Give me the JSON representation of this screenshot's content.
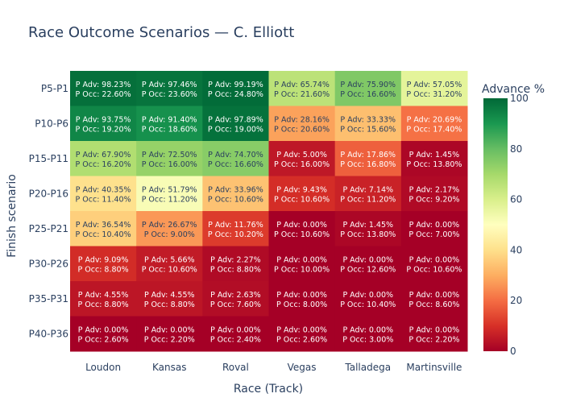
{
  "chart_data": {
    "type": "heatmap",
    "title": "Race Outcome Scenarios — C. Elliott",
    "xlabel": "Race (Track)",
    "ylabel": "Finish scenario",
    "x": [
      "Loudon",
      "Kansas",
      "Roval",
      "Vegas",
      "Talladega",
      "Martinsville"
    ],
    "y": [
      "P5-P1",
      "P10-P6",
      "P15-P11",
      "P20-P16",
      "P25-P21",
      "P30-P26",
      "P35-P31",
      "P40-P36"
    ],
    "cell_label_prefix_adv": "P Adv: ",
    "cell_label_prefix_occ": "P Occ: ",
    "advance_pct": [
      [
        98.23,
        97.46,
        99.19,
        65.74,
        75.9,
        57.05
      ],
      [
        93.75,
        91.4,
        97.89,
        28.16,
        33.33,
        20.69
      ],
      [
        67.9,
        72.5,
        74.7,
        5.0,
        17.86,
        1.45
      ],
      [
        40.35,
        51.79,
        33.96,
        9.43,
        7.14,
        2.17
      ],
      [
        36.54,
        26.67,
        11.76,
        0.0,
        1.45,
        0.0
      ],
      [
        9.09,
        5.66,
        2.27,
        0.0,
        0.0,
        0.0
      ],
      [
        4.55,
        4.55,
        2.63,
        0.0,
        0.0,
        0.0
      ],
      [
        0.0,
        0.0,
        0.0,
        0.0,
        0.0,
        0.0
      ]
    ],
    "occurrence_pct": [
      [
        22.6,
        23.6,
        24.8,
        21.6,
        16.6,
        31.2
      ],
      [
        19.2,
        18.6,
        19.0,
        20.6,
        15.6,
        17.4
      ],
      [
        16.2,
        16.0,
        16.6,
        16.0,
        16.8,
        13.8
      ],
      [
        11.4,
        11.2,
        10.6,
        10.6,
        11.2,
        9.2
      ],
      [
        10.4,
        9.0,
        10.2,
        10.6,
        13.8,
        7.0
      ],
      [
        8.8,
        10.6,
        8.8,
        10.0,
        12.6,
        10.6
      ],
      [
        8.8,
        8.8,
        7.6,
        8.0,
        10.4,
        8.6
      ],
      [
        2.6,
        2.2,
        2.4,
        2.6,
        3.0,
        2.2
      ]
    ],
    "colorscale": "RdYlGn",
    "zlim": [
      0,
      100
    ],
    "colorbar": {
      "title": "Advance %",
      "ticks": [
        0,
        20,
        40,
        60,
        80,
        100
      ]
    },
    "colors": {
      "title": "#2a3f5f",
      "axis_text": "#2a3f5f"
    }
  }
}
